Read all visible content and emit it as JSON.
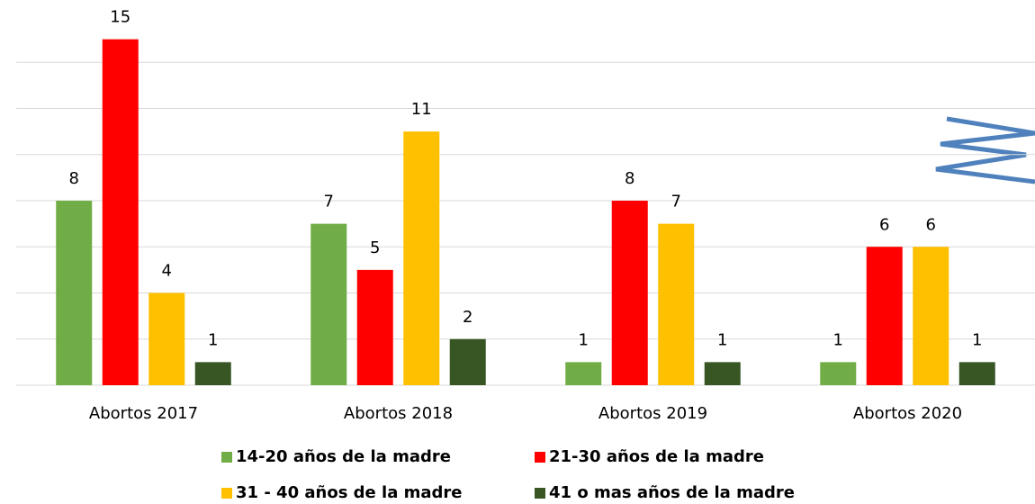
{
  "chart_data": {
    "type": "bar",
    "categories": [
      "Abortos 2017",
      "Abortos 2018",
      "Abortos 2019",
      "Abortos 2020"
    ],
    "series": [
      {
        "name": "14-20 años de la madre",
        "color": "#70ad47",
        "values": [
          8,
          7,
          1,
          1
        ]
      },
      {
        "name": "21-30 años de la madre",
        "color": "#ff0000",
        "values": [
          15,
          5,
          8,
          6
        ]
      },
      {
        "name": "31 - 40 años de la madre",
        "color": "#ffc000",
        "values": [
          4,
          11,
          7,
          6
        ]
      },
      {
        "name": "41 o mas años de la madre",
        "color": "#375623",
        "values": [
          1,
          2,
          1,
          1
        ]
      }
    ],
    "ylim": [
      0,
      16
    ],
    "yticks": [
      0,
      2,
      4,
      6,
      8,
      10,
      12,
      14
    ],
    "grid": true,
    "legend": "bottom"
  }
}
